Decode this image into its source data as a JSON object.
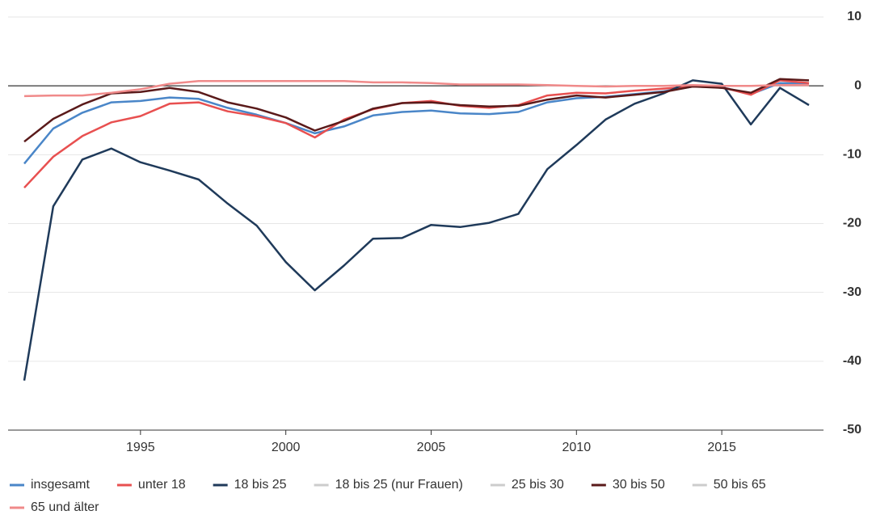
{
  "chart_data": {
    "type": "line",
    "x": [
      1991,
      1992,
      1993,
      1994,
      1995,
      1996,
      1997,
      1998,
      1999,
      2000,
      2001,
      2002,
      2003,
      2004,
      2005,
      2006,
      2007,
      2008,
      2009,
      2010,
      2011,
      2012,
      2013,
      2014,
      2015,
      2016,
      2017,
      2018
    ],
    "xlim": [
      1990.5,
      2018.5
    ],
    "xticks": [
      1995,
      2000,
      2005,
      2010,
      2015
    ],
    "ylim": [
      -50,
      10
    ],
    "yticks": [
      -50,
      -40,
      -30,
      -20,
      -10,
      0,
      10
    ],
    "grid": true,
    "y_axis_side": "right",
    "series": [
      {
        "name": "insgesamt",
        "color": "#4a86c8",
        "values": [
          -11.3,
          -6.2,
          -3.9,
          -2.4,
          -2.2,
          -1.7,
          -1.9,
          -3.2,
          -4.2,
          -5.4,
          -6.9,
          -5.9,
          -4.3,
          -3.8,
          -3.6,
          -4.0,
          -4.1,
          -3.8,
          -2.4,
          -1.8,
          -1.6,
          -1.2,
          -0.8,
          -0.1,
          -0.2,
          -1.2,
          0.4,
          0.3
        ]
      },
      {
        "name": "unter 18",
        "color": "#e85050",
        "values": [
          -14.8,
          -10.3,
          -7.3,
          -5.3,
          -4.4,
          -2.6,
          -2.4,
          -3.7,
          -4.4,
          -5.4,
          -7.5,
          -4.9,
          -3.4,
          -2.5,
          -2.2,
          -2.9,
          -3.2,
          -2.8,
          -1.4,
          -1.0,
          -1.1,
          -0.7,
          -0.4,
          -0.1,
          -0.2,
          -1.3,
          0.8,
          0.4
        ]
      },
      {
        "name": "18 bis 25",
        "color": "#1f3a5a",
        "values": [
          -42.8,
          -17.5,
          -10.7,
          -9.1,
          -11.1,
          -12.3,
          -13.6,
          -17.1,
          -20.3,
          -25.6,
          -29.7,
          -26.1,
          -22.2,
          -22.1,
          -20.2,
          -20.5,
          -19.9,
          -18.6,
          -12.1,
          -8.6,
          -4.9,
          -2.6,
          -1.1,
          0.8,
          0.3,
          -5.6,
          -0.3,
          -2.8
        ]
      },
      {
        "name": "18 bis 25 (nur Frauen)",
        "color": "#cccccc",
        "hidden": true,
        "values": [
          null,
          null,
          null,
          null,
          null,
          null,
          null,
          null,
          null,
          null,
          null,
          null,
          null,
          null,
          null,
          null,
          null,
          null,
          null,
          null,
          null,
          null,
          null,
          null,
          null,
          null,
          null,
          null
        ]
      },
      {
        "name": "25 bis 30",
        "color": "#cccccc",
        "hidden": true,
        "values": [
          null,
          null,
          null,
          null,
          null,
          null,
          null,
          null,
          null,
          null,
          null,
          null,
          null,
          null,
          null,
          null,
          null,
          null,
          null,
          null,
          null,
          null,
          null,
          null,
          null,
          null,
          null,
          null
        ]
      },
      {
        "name": "30 bis 50",
        "color": "#5a1a1a",
        "values": [
          -8.1,
          -4.8,
          -2.7,
          -1.1,
          -0.9,
          -0.3,
          -0.9,
          -2.4,
          -3.3,
          -4.6,
          -6.5,
          -5.1,
          -3.3,
          -2.5,
          -2.4,
          -2.8,
          -3.0,
          -2.9,
          -2.0,
          -1.4,
          -1.7,
          -1.3,
          -0.9,
          -0.1,
          -0.3,
          -1.0,
          1.0,
          0.8
        ]
      },
      {
        "name": "50 bis 65",
        "color": "#cccccc",
        "hidden": true,
        "values": [
          null,
          null,
          null,
          null,
          null,
          null,
          null,
          null,
          null,
          null,
          null,
          null,
          null,
          null,
          null,
          null,
          null,
          null,
          null,
          null,
          null,
          null,
          null,
          null,
          null,
          null,
          null,
          null
        ]
      },
      {
        "name": "65 und älter",
        "color": "#f08a8a",
        "values": [
          -1.5,
          -1.4,
          -1.4,
          -1.0,
          -0.5,
          0.3,
          0.7,
          0.7,
          0.7,
          0.7,
          0.7,
          0.7,
          0.5,
          0.5,
          0.4,
          0.2,
          0.2,
          0.2,
          0.1,
          0.0,
          -0.1,
          0.0,
          0.0,
          0.1,
          0.0,
          0.0,
          0.1,
          0.1
        ]
      }
    ]
  }
}
